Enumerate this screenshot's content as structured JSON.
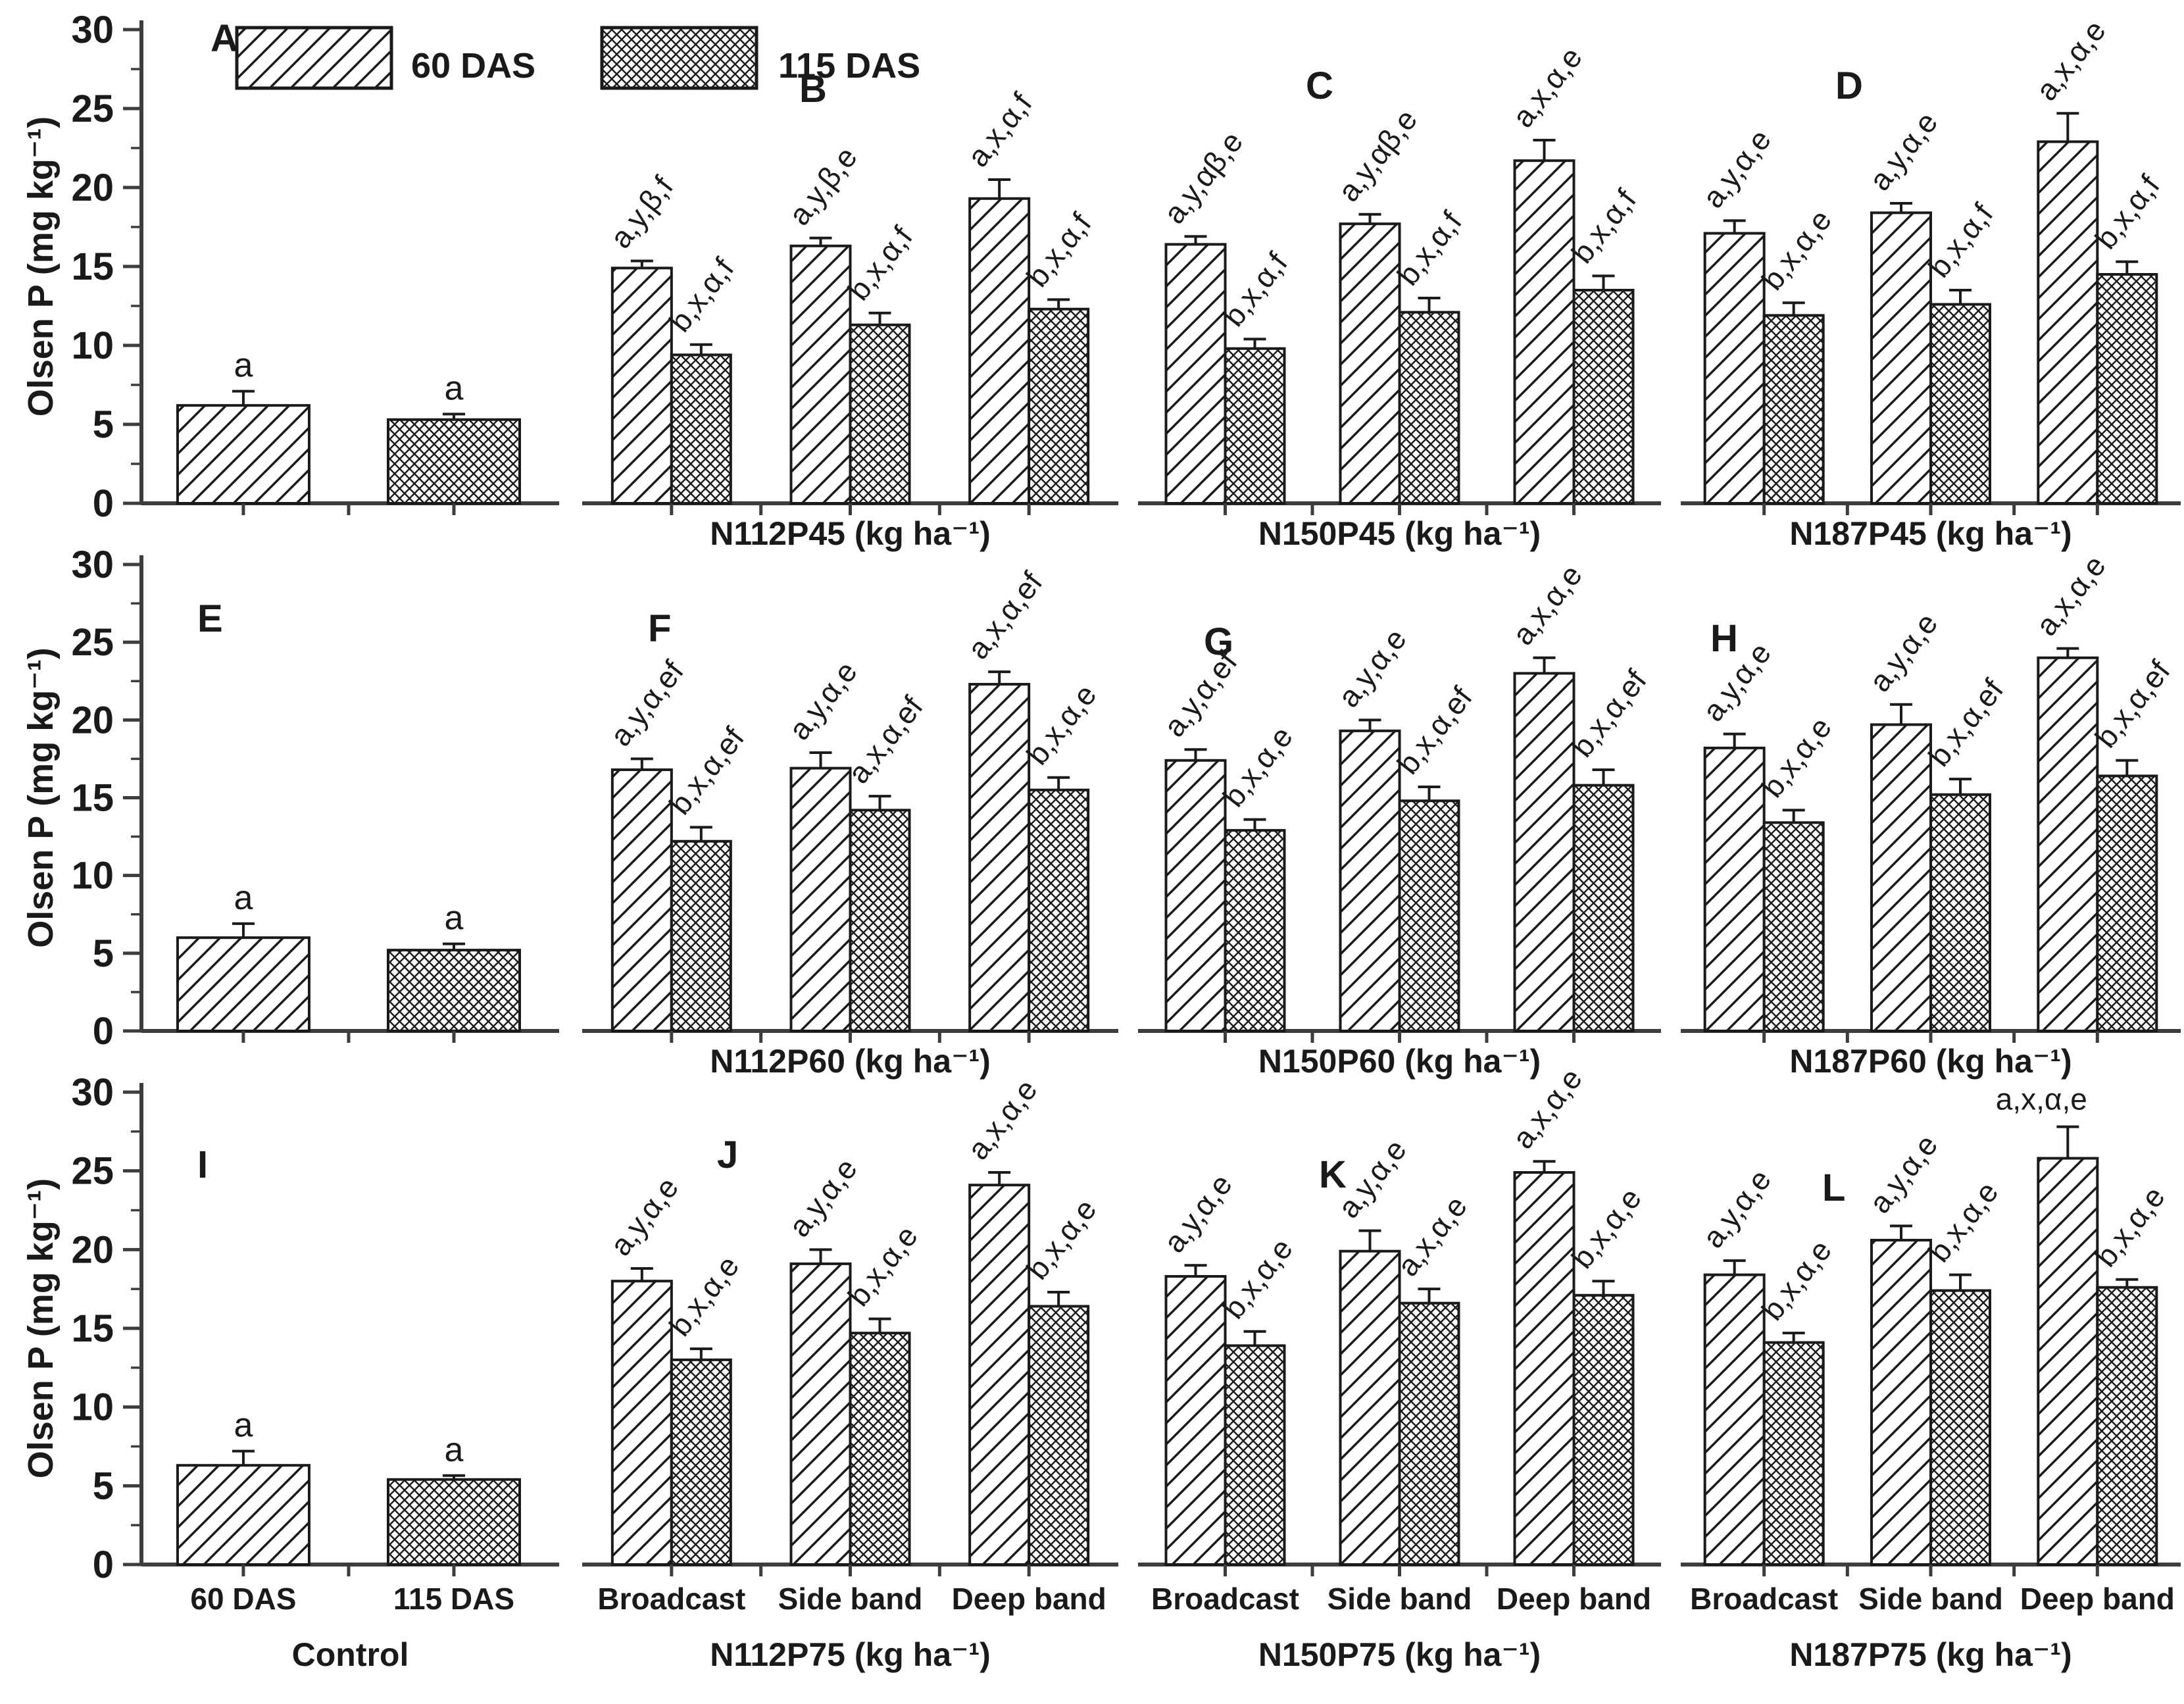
{
  "figure": {
    "background": "#ffffff",
    "ink_color": "#1a1a1a",
    "axis_color": "#3d3d3d",
    "ylabel": "Olsen P (mg kg⁻¹)",
    "legend": [
      {
        "label": "60 DAS",
        "pattern": "diagonal-hatch"
      },
      {
        "label": "115 DAS",
        "pattern": "cross-hatch"
      }
    ]
  },
  "chart_data": {
    "type": "bar",
    "ylabel": "Olsen P (mg kg⁻¹)",
    "ylim": [
      0,
      30
    ],
    "yticks": [
      0,
      5,
      10,
      15,
      20,
      25,
      30
    ],
    "minor_tick_step": 2.5,
    "series": [
      "60 DAS",
      "115 DAS"
    ],
    "group_names": [
      "Broadcast",
      "Side band",
      "Deep band"
    ],
    "rows": [
      {
        "panels": [
          {
            "letter": "A",
            "kind": "control",
            "x_title": "",
            "bars": [
              {
                "series": "60 DAS",
                "value": 6.2,
                "err": 0.9,
                "label": "a"
              },
              {
                "series": "115 DAS",
                "value": 5.3,
                "err": 0.35,
                "label": "a"
              }
            ]
          },
          {
            "letter": "B",
            "kind": "treatment",
            "x_title": "N112P45 (kg ha⁻¹)",
            "groups": [
              {
                "bars": [
                  {
                    "value": 14.9,
                    "err": 0.45,
                    "label": "a,y,β,f"
                  },
                  {
                    "value": 9.4,
                    "err": 0.65,
                    "label": "b,x,α,f"
                  }
                ]
              },
              {
                "bars": [
                  {
                    "value": 16.3,
                    "err": 0.5,
                    "label": "a,y,β,e"
                  },
                  {
                    "value": 11.3,
                    "err": 0.75,
                    "label": "b,x,α,f"
                  }
                ]
              },
              {
                "bars": [
                  {
                    "value": 19.3,
                    "err": 1.2,
                    "label": "a,x,α,f"
                  },
                  {
                    "value": 12.3,
                    "err": 0.6,
                    "label": "b,x,α,f"
                  }
                ]
              }
            ]
          },
          {
            "letter": "C",
            "kind": "treatment",
            "x_title": "N150P45 (kg ha⁻¹)",
            "groups": [
              {
                "bars": [
                  {
                    "value": 16.4,
                    "err": 0.5,
                    "label": "a,y,αβ,e"
                  },
                  {
                    "value": 9.8,
                    "err": 0.6,
                    "label": "b,x,α,f"
                  }
                ]
              },
              {
                "bars": [
                  {
                    "value": 17.7,
                    "err": 0.6,
                    "label": "a,y,αβ,e"
                  },
                  {
                    "value": 12.1,
                    "err": 0.9,
                    "label": "b,x,α,f"
                  }
                ]
              },
              {
                "bars": [
                  {
                    "value": 21.7,
                    "err": 1.3,
                    "label": "a,x,α,e"
                  },
                  {
                    "value": 13.5,
                    "err": 0.9,
                    "label": "b,x,α,f"
                  }
                ]
              }
            ]
          },
          {
            "letter": "D",
            "kind": "treatment",
            "x_title": "N187P45 (kg ha⁻¹)",
            "groups": [
              {
                "bars": [
                  {
                    "value": 17.1,
                    "err": 0.8,
                    "label": "a,y,α,e"
                  },
                  {
                    "value": 11.9,
                    "err": 0.8,
                    "label": "b,x,α,e"
                  }
                ]
              },
              {
                "bars": [
                  {
                    "value": 18.4,
                    "err": 0.6,
                    "label": "a,y,α,e"
                  },
                  {
                    "value": 12.6,
                    "err": 0.9,
                    "label": "b,x,α,f"
                  }
                ]
              },
              {
                "bars": [
                  {
                    "value": 22.9,
                    "err": 1.8,
                    "label": "a,x,α,e"
                  },
                  {
                    "value": 14.5,
                    "err": 0.8,
                    "label": "b,x,α,f"
                  }
                ]
              }
            ]
          }
        ]
      },
      {
        "panels": [
          {
            "letter": "E",
            "kind": "control",
            "x_title": "",
            "bars": [
              {
                "series": "60 DAS",
                "value": 6.0,
                "err": 0.9,
                "label": "a"
              },
              {
                "series": "115 DAS",
                "value": 5.2,
                "err": 0.4,
                "label": "a"
              }
            ]
          },
          {
            "letter": "F",
            "kind": "treatment",
            "x_title": "N112P60 (kg ha⁻¹)",
            "groups": [
              {
                "bars": [
                  {
                    "value": 16.8,
                    "err": 0.7,
                    "label": "a,y,α,ef"
                  },
                  {
                    "value": 12.2,
                    "err": 0.9,
                    "label": "b,x,α,ef"
                  }
                ]
              },
              {
                "bars": [
                  {
                    "value": 16.9,
                    "err": 1.0,
                    "label": "a,y,α,e"
                  },
                  {
                    "value": 14.2,
                    "err": 0.9,
                    "label": "a,x,α,ef"
                  }
                ]
              },
              {
                "bars": [
                  {
                    "value": 22.3,
                    "err": 0.8,
                    "label": "a,x,α,ef"
                  },
                  {
                    "value": 15.5,
                    "err": 0.8,
                    "label": "b,x,α,e"
                  }
                ]
              }
            ]
          },
          {
            "letter": "G",
            "kind": "treatment",
            "x_title": "N150P60 (kg ha⁻¹)",
            "groups": [
              {
                "bars": [
                  {
                    "value": 17.4,
                    "err": 0.7,
                    "label": "a,y,α,ef"
                  },
                  {
                    "value": 12.9,
                    "err": 0.7,
                    "label": "b,x,α,e"
                  }
                ]
              },
              {
                "bars": [
                  {
                    "value": 19.3,
                    "err": 0.7,
                    "label": "a,y,α,e"
                  },
                  {
                    "value": 14.8,
                    "err": 0.9,
                    "label": "b,x,α,ef"
                  }
                ]
              },
              {
                "bars": [
                  {
                    "value": 23.0,
                    "err": 1.0,
                    "label": "a,x,α,e"
                  },
                  {
                    "value": 15.8,
                    "err": 1.0,
                    "label": "b,x,α,ef"
                  }
                ]
              }
            ]
          },
          {
            "letter": "H",
            "kind": "treatment",
            "x_title": "N187P60 (kg ha⁻¹)",
            "groups": [
              {
                "bars": [
                  {
                    "value": 18.2,
                    "err": 0.9,
                    "label": "a,y,α,e"
                  },
                  {
                    "value": 13.4,
                    "err": 0.8,
                    "label": "b,x,α,e"
                  }
                ]
              },
              {
                "bars": [
                  {
                    "value": 19.7,
                    "err": 1.3,
                    "label": "a,y,α,e"
                  },
                  {
                    "value": 15.2,
                    "err": 1.0,
                    "label": "b,x,α,ef"
                  }
                ]
              },
              {
                "bars": [
                  {
                    "value": 24.0,
                    "err": 0.6,
                    "label": "a,x,α,e"
                  },
                  {
                    "value": 16.4,
                    "err": 1.0,
                    "label": "b,x,α,ef"
                  }
                ]
              }
            ]
          }
        ]
      },
      {
        "panels": [
          {
            "letter": "I",
            "kind": "control",
            "x_title": "Control",
            "bars": [
              {
                "series": "60 DAS",
                "tick": "60 DAS",
                "value": 6.3,
                "err": 0.9,
                "label": "a"
              },
              {
                "series": "115 DAS",
                "tick": "115 DAS",
                "value": 5.4,
                "err": 0.25,
                "label": "a"
              }
            ]
          },
          {
            "letter": "J",
            "kind": "treatment",
            "x_title": "N112P75 (kg ha⁻¹)",
            "groups": [
              {
                "name": "Broadcast",
                "bars": [
                  {
                    "value": 18.0,
                    "err": 0.8,
                    "label": "a,y,α,e"
                  },
                  {
                    "value": 13.0,
                    "err": 0.7,
                    "label": "b,x,α,e"
                  }
                ]
              },
              {
                "name": "Side band",
                "bars": [
                  {
                    "value": 19.1,
                    "err": 0.9,
                    "label": "a,y,α,e"
                  },
                  {
                    "value": 14.7,
                    "err": 0.9,
                    "label": "b,x,α,e"
                  }
                ]
              },
              {
                "name": "Deep band",
                "bars": [
                  {
                    "value": 24.1,
                    "err": 0.8,
                    "label": "a,x,α,e"
                  },
                  {
                    "value": 16.4,
                    "err": 0.9,
                    "label": "b,x,α,e"
                  }
                ]
              }
            ]
          },
          {
            "letter": "K",
            "kind": "treatment",
            "x_title": "N150P75 (kg ha⁻¹)",
            "groups": [
              {
                "name": "Broadcast",
                "bars": [
                  {
                    "value": 18.3,
                    "err": 0.7,
                    "label": "a,y,α,e"
                  },
                  {
                    "value": 13.9,
                    "err": 0.9,
                    "label": "b,x,α,e"
                  }
                ]
              },
              {
                "name": "Side band",
                "bars": [
                  {
                    "value": 19.9,
                    "err": 1.3,
                    "label": "a,y,α,e"
                  },
                  {
                    "value": 16.6,
                    "err": 0.9,
                    "label": "a,x,α,e"
                  }
                ]
              },
              {
                "name": "Deep band",
                "bars": [
                  {
                    "value": 24.9,
                    "err": 0.7,
                    "label": "a,x,α,e"
                  },
                  {
                    "value": 17.1,
                    "err": 0.9,
                    "label": "b,x,α,e"
                  }
                ]
              }
            ]
          },
          {
            "letter": "L",
            "kind": "treatment",
            "x_title": "N187P75 (kg ha⁻¹)",
            "groups": [
              {
                "name": "Broadcast",
                "bars": [
                  {
                    "value": 18.4,
                    "err": 0.9,
                    "label": "a,y,α,e"
                  },
                  {
                    "value": 14.1,
                    "err": 0.6,
                    "label": "b,x,α,e"
                  }
                ]
              },
              {
                "name": "Side band",
                "bars": [
                  {
                    "value": 20.6,
                    "err": 0.9,
                    "label": "a,y,α,e"
                  },
                  {
                    "value": 17.4,
                    "err": 1.0,
                    "label": "b,x,α,e"
                  }
                ]
              },
              {
                "name": "Deep band",
                "bars": [
                  {
                    "value": 25.8,
                    "err": 2.0,
                    "label": "a,x,α,e",
                    "label_flat": true
                  },
                  {
                    "value": 17.6,
                    "err": 0.5,
                    "label": "b,x,α,e"
                  }
                ]
              }
            ]
          }
        ]
      }
    ]
  }
}
